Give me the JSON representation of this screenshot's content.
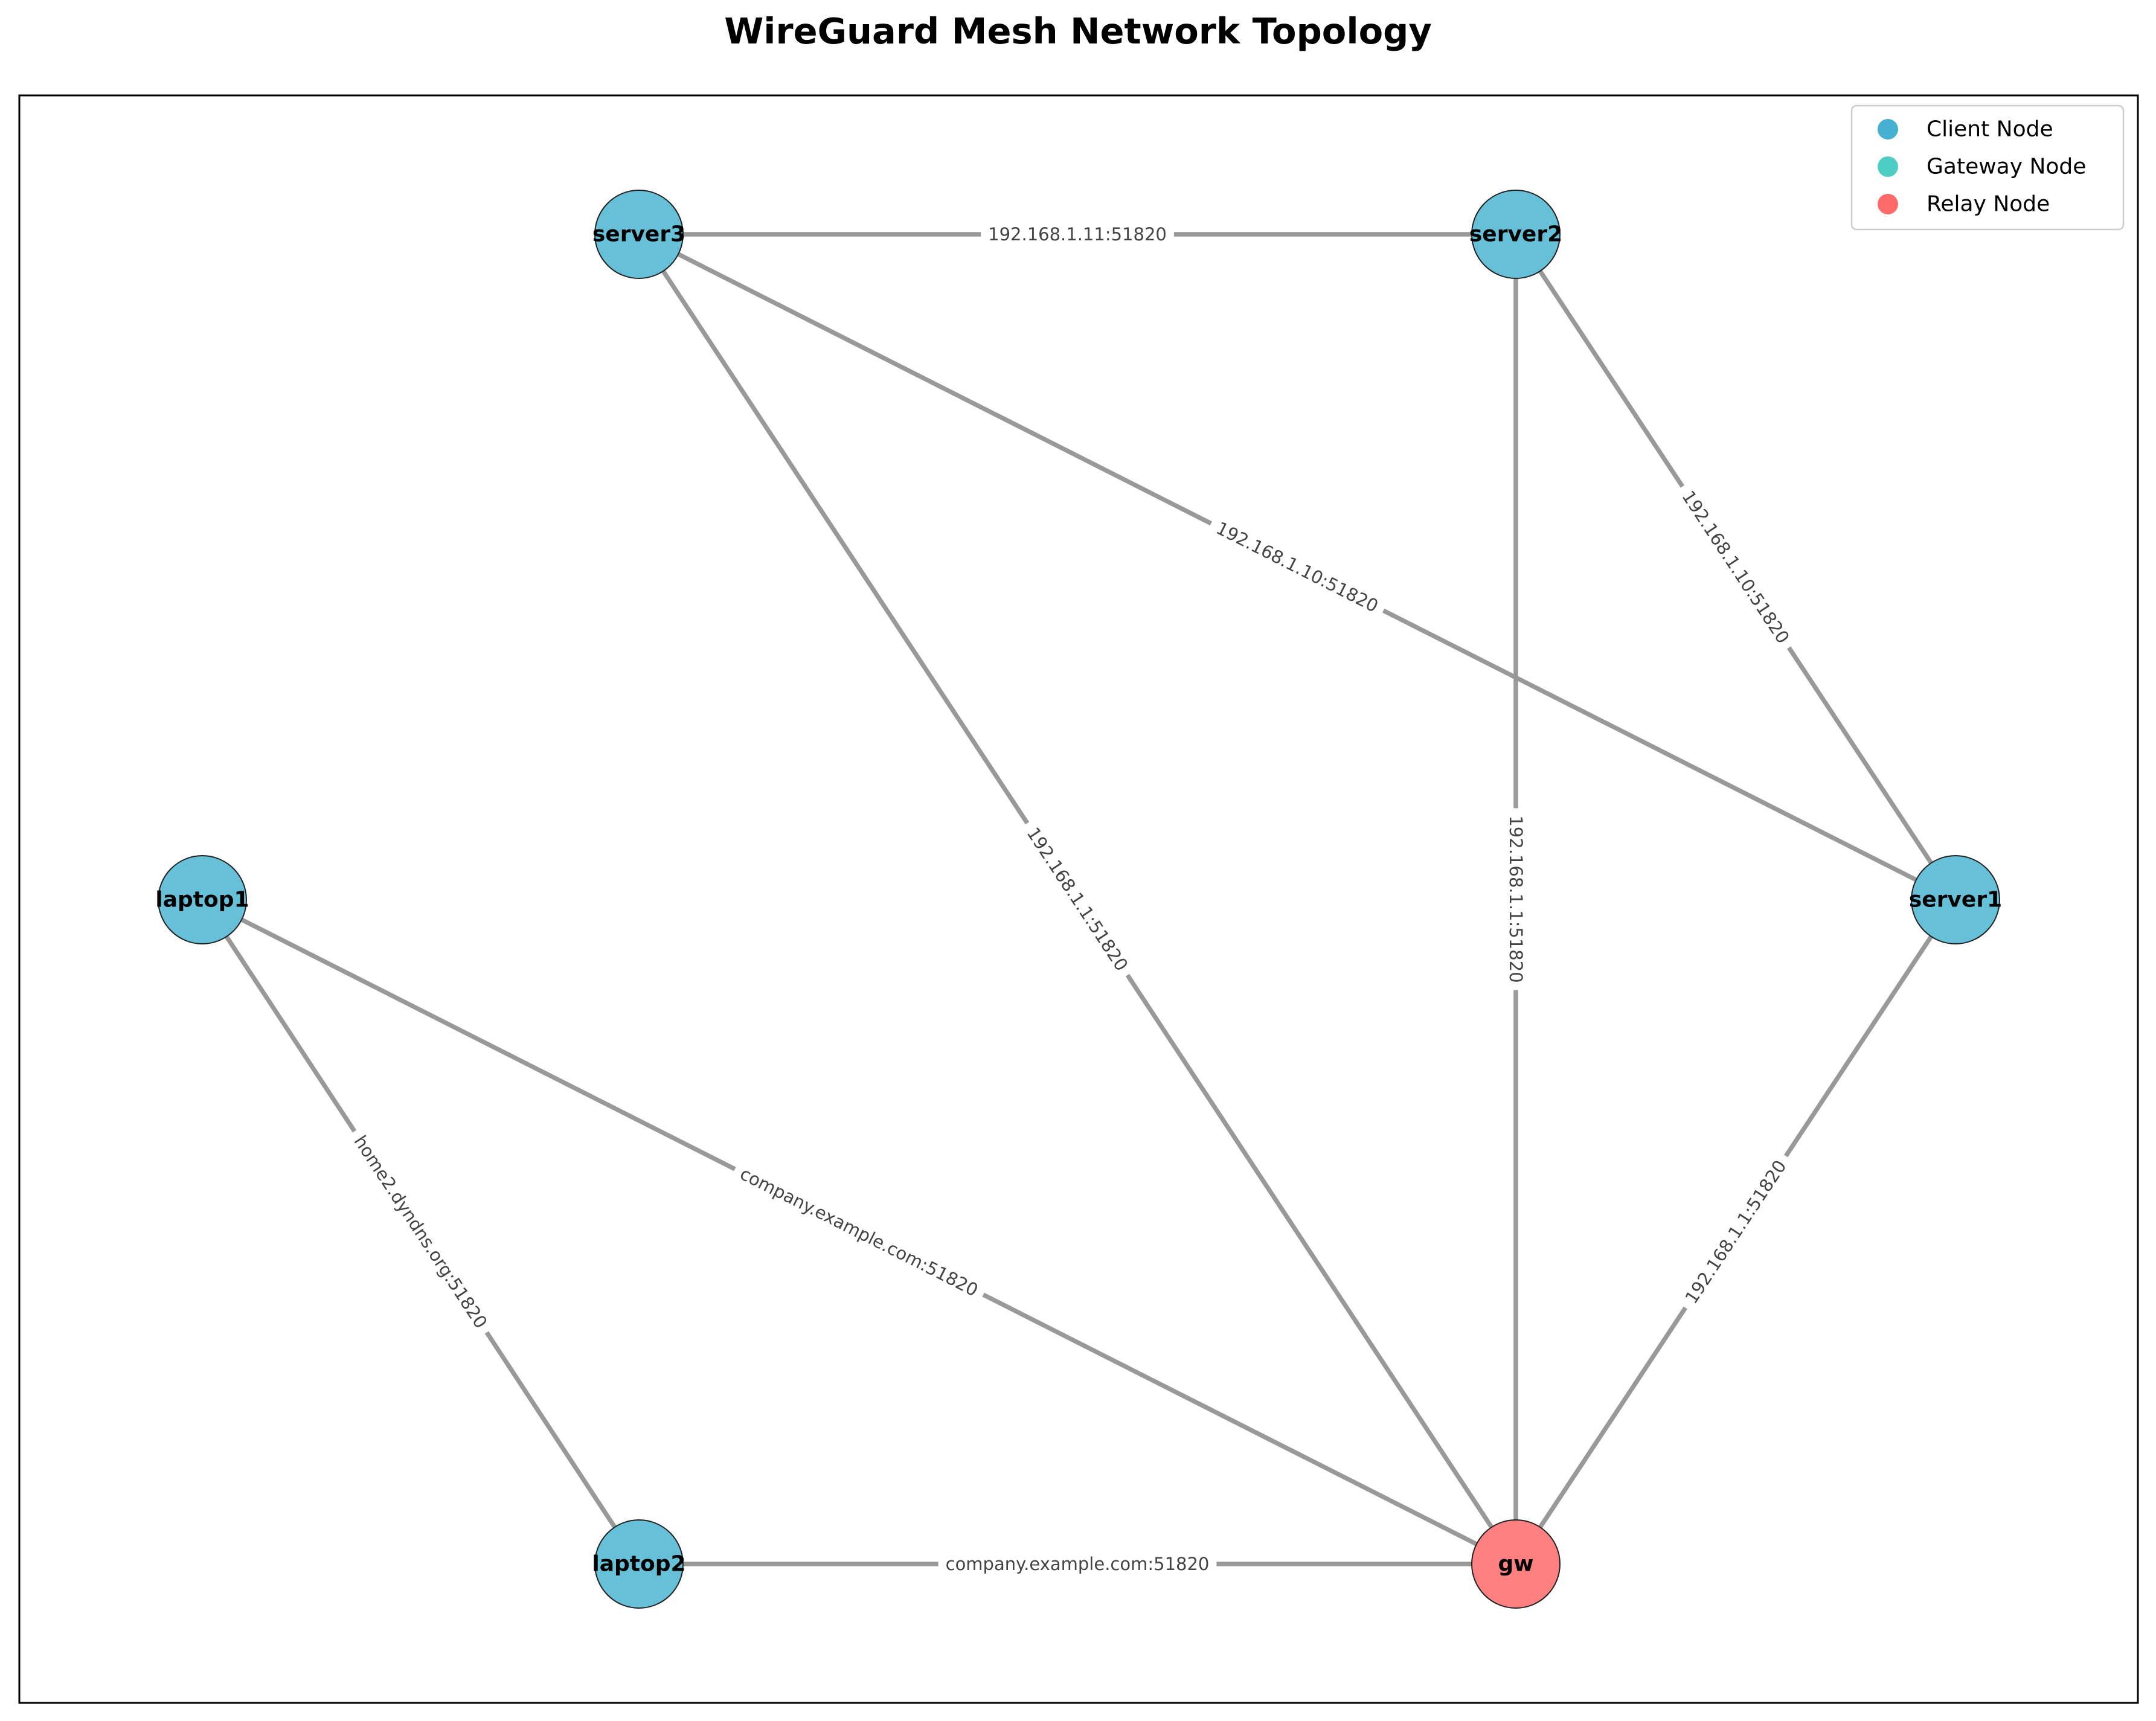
{
  "diagram": {
    "title": "WireGuard Mesh Network Topology",
    "colors": {
      "client": "#66c0d8",
      "gateway": "#4ecdc4",
      "relay": "#ff8080",
      "edge": "#999999",
      "node_border": "#222222"
    },
    "legend": {
      "placement": "top-right",
      "items": [
        {
          "label": "Client Node",
          "color": "#45b0d0"
        },
        {
          "label": "Gateway Node",
          "color": "#4ecdc4"
        },
        {
          "label": "Relay Node",
          "color": "#ff6b6b"
        }
      ]
    },
    "nodes": [
      {
        "id": "server3",
        "label": "server3",
        "role": "client"
      },
      {
        "id": "server2",
        "label": "server2",
        "role": "client"
      },
      {
        "id": "laptop1",
        "label": "laptop1",
        "role": "client"
      },
      {
        "id": "server1",
        "label": "server1",
        "role": "client"
      },
      {
        "id": "laptop2",
        "label": "laptop2",
        "role": "client"
      },
      {
        "id": "gw",
        "label": "gw",
        "role": "relay"
      }
    ],
    "edges": [
      {
        "source": "server3",
        "target": "server2",
        "label": "192.168.1.11:51820"
      },
      {
        "source": "server3",
        "target": "server1",
        "label": "192.168.1.10:51820"
      },
      {
        "source": "server3",
        "target": "gw",
        "label": "192.168.1.1:51820"
      },
      {
        "source": "server2",
        "target": "server1",
        "label": "192.168.1.10:51820"
      },
      {
        "source": "server2",
        "target": "gw",
        "label": "192.168.1.1:51820"
      },
      {
        "source": "server1",
        "target": "gw",
        "label": "192.168.1.1:51820"
      },
      {
        "source": "laptop1",
        "target": "laptop2",
        "label": "home2.dyndns.org:51820"
      },
      {
        "source": "laptop1",
        "target": "gw",
        "label": "company.example.com:51820"
      },
      {
        "source": "laptop2",
        "target": "gw",
        "label": "company.example.com:51820"
      }
    ]
  }
}
